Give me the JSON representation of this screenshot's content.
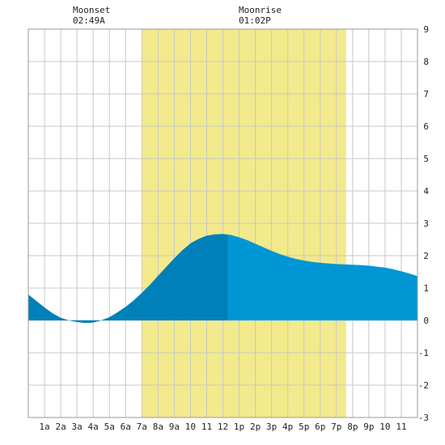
{
  "header": {
    "moonset_label": "Moonset",
    "moonset_time": "02:49A",
    "moonrise_label": "Moonrise",
    "moonrise_time": "01:02P"
  },
  "chart_data": {
    "type": "area",
    "x_unit": "hour of day",
    "xlim": [
      0,
      24
    ],
    "ylim": [
      -3,
      9
    ],
    "grid": true,
    "x_ticks": [
      {
        "x": 1,
        "label": "1a"
      },
      {
        "x": 2,
        "label": "2a"
      },
      {
        "x": 3,
        "label": "3a"
      },
      {
        "x": 4,
        "label": "4a"
      },
      {
        "x": 5,
        "label": "5a"
      },
      {
        "x": 6,
        "label": "6a"
      },
      {
        "x": 7,
        "label": "7a"
      },
      {
        "x": 8,
        "label": "8a"
      },
      {
        "x": 9,
        "label": "9a"
      },
      {
        "x": 10,
        "label": "10"
      },
      {
        "x": 11,
        "label": "11"
      },
      {
        "x": 12,
        "label": "12"
      },
      {
        "x": 13,
        "label": "1p"
      },
      {
        "x": 14,
        "label": "2p"
      },
      {
        "x": 15,
        "label": "3p"
      },
      {
        "x": 16,
        "label": "4p"
      },
      {
        "x": 17,
        "label": "5p"
      },
      {
        "x": 18,
        "label": "6p"
      },
      {
        "x": 19,
        "label": "7p"
      },
      {
        "x": 20,
        "label": "8p"
      },
      {
        "x": 21,
        "label": "9p"
      },
      {
        "x": 22,
        "label": "10"
      },
      {
        "x": 23,
        "label": "11"
      }
    ],
    "y_ticks": [
      -3,
      -2,
      -1,
      0,
      1,
      2,
      3,
      4,
      5,
      6,
      7,
      8,
      9
    ],
    "daylight": {
      "start": 7.0,
      "end": 19.6
    },
    "current_split_x": 12.3,
    "series": [
      {
        "x": [
          0,
          0.5,
          1,
          1.5,
          2,
          2.5,
          3,
          3.5,
          4,
          4.5,
          5,
          5.5,
          6,
          6.5,
          7,
          7.5,
          8,
          8.5,
          9,
          9.5,
          10,
          10.5,
          11,
          11.5,
          12,
          12.5,
          13,
          13.5,
          14,
          14.5,
          15,
          15.5,
          16,
          16.5,
          17,
          17.5,
          18,
          18.5,
          19,
          19.5,
          20,
          20.5,
          21,
          21.5,
          22,
          22.5,
          23,
          23.5,
          24
        ],
        "y": [
          0.8,
          0.6,
          0.4,
          0.22,
          0.08,
          0.0,
          -0.05,
          -0.08,
          -0.07,
          0.0,
          0.1,
          0.25,
          0.42,
          0.62,
          0.85,
          1.1,
          1.38,
          1.65,
          1.92,
          2.17,
          2.38,
          2.52,
          2.62,
          2.66,
          2.67,
          2.64,
          2.57,
          2.48,
          2.37,
          2.26,
          2.15,
          2.05,
          1.97,
          1.9,
          1.85,
          1.81,
          1.78,
          1.76,
          1.74,
          1.73,
          1.72,
          1.71,
          1.69,
          1.66,
          1.63,
          1.58,
          1.52,
          1.45,
          1.37
        ]
      }
    ],
    "colors": {
      "background": "#ffffff",
      "daylight": "#f2ea8c",
      "grid": "#c8c8c8",
      "fill_past": "#0080b8",
      "fill_future": "#0096d6"
    }
  }
}
